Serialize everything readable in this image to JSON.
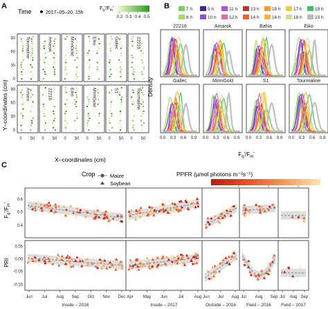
{
  "panel_letters": {
    "a": "A",
    "b": "B",
    "c": "C"
  },
  "panel_a": {
    "legend_time_label": "Time",
    "legend_time_value": "2017–05–20, 15h",
    "legend_color_ticks": [
      "0.2",
      "0.3",
      "0.4",
      "0.5"
    ],
    "colorbar_from": "#f4f9d8",
    "colorbar_to": "#2f9a1c",
    "ylabel": "Y–coordinates (cm)",
    "xlabel": "X–coordinates (cm)",
    "y_ticks": [
      "0",
      "30",
      "60",
      "90"
    ],
    "x_ticks": [
      "0",
      "50"
    ],
    "row1_labels": [
      "Tourmaline",
      "Amarok",
      "MinnGold",
      "Eiko",
      "Gallec",
      "22216"
    ],
    "row2_labels": [
      "Amaro",
      "22216",
      "Eiko",
      "MinnGold",
      "S1",
      "Tourmaline"
    ]
  },
  "panel_b": {
    "legend_items": [
      {
        "label": "7 h",
        "color": "#79d15a"
      },
      {
        "label": "9 h",
        "color": "#4b1fa0"
      },
      {
        "label": "11 h",
        "color": "#b84bd8"
      },
      {
        "label": "13 h",
        "color": "#d52b1e"
      },
      {
        "label": "15 h",
        "color": "#ff9922"
      },
      {
        "label": "17 h",
        "color": "#f2cf1e"
      },
      {
        "label": "19 h",
        "color": "#3dc55b"
      },
      {
        "label": "8 h",
        "color": "#a6d96a"
      },
      {
        "label": "10 h",
        "color": "#8a4fd6"
      },
      {
        "label": "12 h",
        "color": "#e06aa8"
      },
      {
        "label": "14 h",
        "color": "#ff5a1e"
      },
      {
        "label": "16 h",
        "color": "#ffb347"
      },
      {
        "label": "18 h",
        "color": "#cfe08a"
      },
      {
        "label": "23 h",
        "color": "#b8b8b8"
      }
    ],
    "panels": [
      "22216",
      "Amarok",
      "Bahia",
      "Eiko",
      "Gallec",
      "MinnGold",
      "S1",
      "Tourmaline"
    ],
    "ylabel": "Density",
    "xlabel": "Fq’/Fm’",
    "x_ticks": [
      "0.0",
      "0.3",
      "0.6",
      "0.9"
    ]
  },
  "panel_c": {
    "legend_crop_title": "Crop",
    "legend_crop_items": [
      "Maize",
      "Soybean"
    ],
    "legend_ppfr_title": "PPFR (µmol photons m⁻²s⁻¹)",
    "legend_ppfr_ticks": [
      "500",
      "1000",
      "1500"
    ],
    "ppfr_colors": [
      "#b91a12",
      "#e8562a",
      "#f7a15a",
      "#fde4b4"
    ],
    "row1_ylabel": "Fq’/Fm’",
    "row1_y_ticks": [
      "0.4",
      "0.5",
      "0.6"
    ],
    "row2_ylabel": "PRI",
    "row2_y_ticks": [
      "-0.10",
      "-0.05",
      "0.00",
      "0.05"
    ],
    "facets": [
      {
        "label": "Inside – 2016",
        "months": [
          "Jun",
          "Jul",
          "Aug",
          "Sep",
          "Oct",
          "Nov",
          "Dec"
        ]
      },
      {
        "label": "Inside – 2017",
        "months": [
          "Apr",
          "May",
          "Jun",
          "Jul",
          "Aug"
        ]
      },
      {
        "label": "Outside – 2016",
        "months": [
          "Jun",
          "Jul",
          "Aug"
        ]
      },
      {
        "label": "Field – 2016",
        "months": [
          "Jul",
          "Aug",
          "Sep"
        ]
      },
      {
        "label": "Field – 2017",
        "months": [
          "Jul",
          "Aug",
          "Sep"
        ]
      }
    ]
  }
}
